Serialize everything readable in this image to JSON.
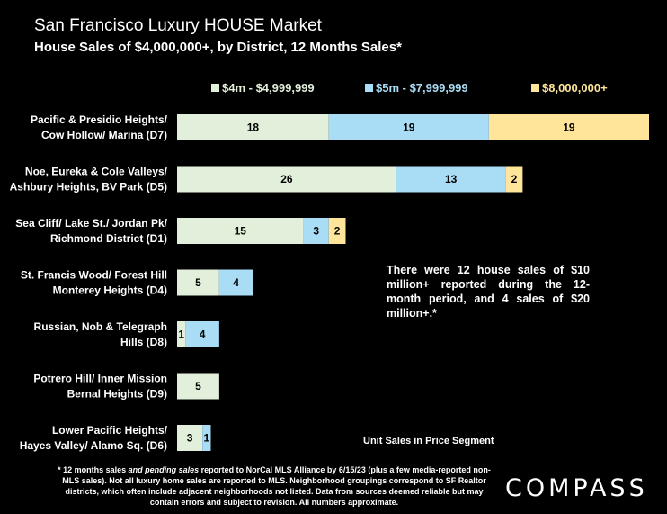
{
  "chart_data": {
    "type": "bar",
    "orientation": "horizontal",
    "stacked": true,
    "title": "San Francisco Luxury HOUSE Market",
    "subtitle": "House Sales of $4,000,000+, by District, 12 Months Sales*",
    "xlim": [
      0,
      56
    ],
    "categories": [
      [
        "Pacific & Presidio Heights/",
        "Cow Hollow/ Marina (D7)"
      ],
      [
        "Noe, Eureka & Cole Valleys/",
        "Ashbury Heights, BV Park (D5)"
      ],
      [
        "Sea Cliff/ Lake St./ Jordan Pk/",
        "Richmond District (D1)"
      ],
      [
        "St. Francis Wood/ Forest Hill",
        "Monterey Heights (D4)"
      ],
      [
        "Russian, Nob & Telegraph",
        "Hills (D8)"
      ],
      [
        "Potrero Hill/ Inner Mission",
        "Bernal Heights (D9)"
      ],
      [
        "Lower Pacific Heights/",
        "Hayes Valley/ Alamo Sq. (D6)"
      ]
    ],
    "series": [
      {
        "name": "$4m - $4,999,999",
        "color": "#e2efda",
        "values": [
          18,
          26,
          15,
          5,
          1,
          5,
          3
        ]
      },
      {
        "name": "$5m - $7,999,999",
        "color": "#a9dcf5",
        "values": [
          19,
          13,
          3,
          4,
          4,
          0,
          1
        ]
      },
      {
        "name": "$8,000,000+",
        "color": "#ffe59a",
        "values": [
          19,
          2,
          2,
          0,
          0,
          0,
          0
        ]
      }
    ],
    "xlabel": "Unit Sales in Price Segment",
    "legend": "top"
  },
  "note": "There were 12 house sales of $10 million+ reported during the 12-month period, and 4 sales of $20 million+.*",
  "footnote_parts": [
    "* 12 months sales ",
    "and pending sales",
    " reported to NorCal MLS Alliance by 6/15/23 (plus a few media-reported non-MLS sales). Not all luxury home sales are reported to MLS. Neighborhood groupings correspond to SF Realtor districts, which often include adjacent neighborhoods not listed. Data from sources deemed reliable but may contain errors and subject to revision. All numbers approximate."
  ],
  "logo": "COMPASS"
}
